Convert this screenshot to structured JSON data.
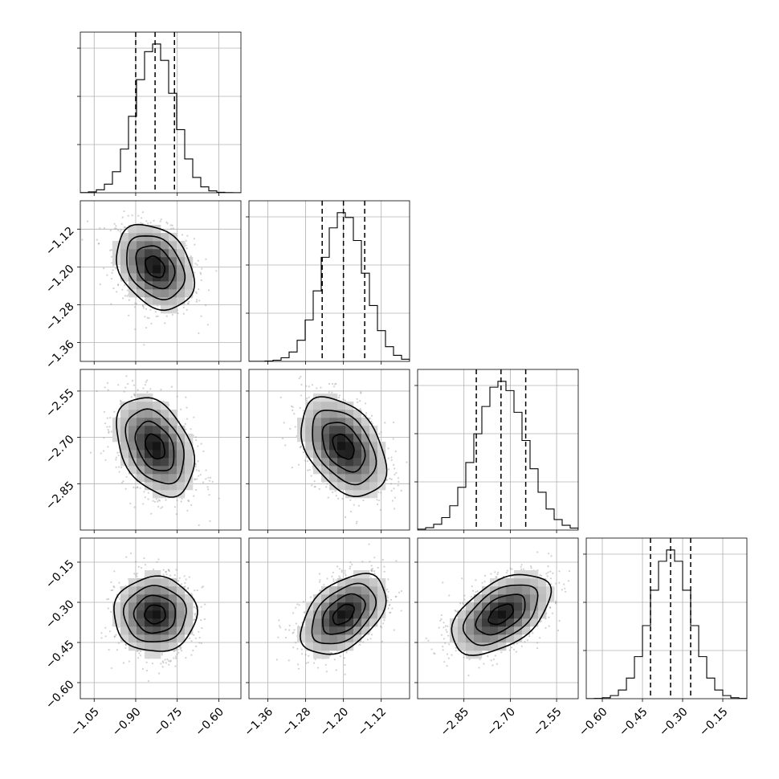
{
  "chart_data": {
    "type": "corner",
    "parameters": [
      {
        "index": 0,
        "range": [
          -1.1,
          -0.52
        ],
        "ticks": [
          -1.05,
          -0.9,
          -0.75,
          -0.6
        ],
        "tick_labels": [
          "−1.05",
          "−0.90",
          "−0.75",
          "−0.60"
        ],
        "quantiles": [
          -0.9,
          -0.83,
          -0.76
        ],
        "median": -0.83,
        "sigma": 0.07
      },
      {
        "index": 1,
        "range": [
          -1.4,
          -1.06
        ],
        "ticks": [
          -1.36,
          -1.28,
          -1.2,
          -1.12
        ],
        "tick_labels": [
          "−1.36",
          "−1.28",
          "−1.20",
          "−1.12"
        ],
        "quantiles": [
          -1.245,
          -1.2,
          -1.155
        ],
        "median": -1.2,
        "sigma": 0.045
      },
      {
        "index": 2,
        "range": [
          -3.0,
          -2.48
        ],
        "ticks": [
          -2.85,
          -2.7,
          -2.55
        ],
        "tick_labels": [
          "−2.85",
          "−2.70",
          "−2.55"
        ],
        "quantiles": [
          -2.81,
          -2.73,
          -2.65
        ],
        "median": -2.73,
        "sigma": 0.08
      },
      {
        "index": 3,
        "range": [
          -0.66,
          -0.06
        ],
        "ticks": [
          -0.6,
          -0.45,
          -0.3,
          -0.15
        ],
        "tick_labels": [
          "−0.60",
          "−0.45",
          "−0.30",
          "−0.15"
        ],
        "quantiles": [
          -0.42,
          -0.345,
          -0.27
        ],
        "median": -0.345,
        "sigma": 0.075
      }
    ],
    "correlations": {
      "1-0": -0.3,
      "2-0": -0.35,
      "2-1": -0.4,
      "3-0": 0.0,
      "3-1": 0.45,
      "3-2": 0.5
    },
    "histogram_bins": 20,
    "contour_levels_sigma": [
      0.5,
      1.0,
      1.5,
      2.0
    ],
    "grid": true,
    "colors": {
      "ink": "#000000",
      "grid": "#b0b0b0",
      "points": "#9a9a9a"
    }
  }
}
